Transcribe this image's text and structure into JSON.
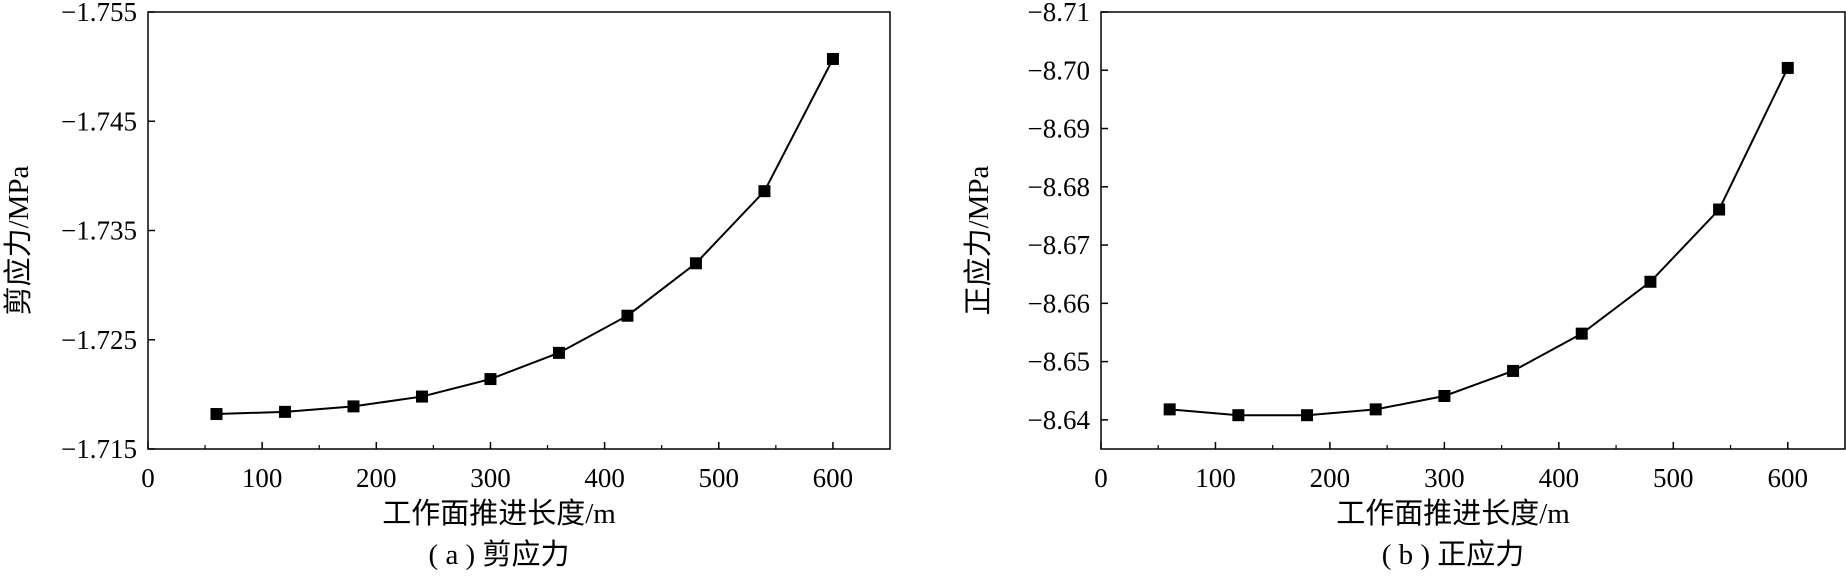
{
  "chart_data": [
    {
      "type": "line",
      "marker": "square",
      "caption": "( a ) 剪应力",
      "xlabel": "工作面推进长度/m",
      "ylabel": "剪应力/MPa",
      "xlim": [
        0,
        650
      ],
      "ylim": [
        -1.715,
        -1.755
      ],
      "y_axis_inverted": true,
      "xticks": [
        0,
        100,
        200,
        300,
        400,
        500,
        600
      ],
      "yticks": [
        "-1.755",
        "-1.745",
        "-1.735",
        "-1.725",
        "-1.715"
      ],
      "yticks_values": [
        -1.755,
        -1.745,
        -1.735,
        -1.725,
        -1.715
      ],
      "grid": false,
      "legend": "none",
      "series": [
        {
          "x": [
            60,
            120,
            180,
            240,
            300,
            360,
            420,
            480,
            540,
            600
          ],
          "y": [
            -1.7182,
            -1.7184,
            -1.7189,
            -1.7198,
            -1.7214,
            -1.7238,
            -1.7272,
            -1.732,
            -1.7386,
            -1.7507
          ]
        }
      ]
    },
    {
      "type": "line",
      "marker": "square",
      "caption": "( b ) 正应力",
      "xlabel": "工作面推进长度/m",
      "ylabel": "正应力/MPa",
      "xlim": [
        0,
        650
      ],
      "ylim": [
        -8.635,
        -8.71
      ],
      "y_axis_inverted": true,
      "xticks": [
        0,
        100,
        200,
        300,
        400,
        500,
        600
      ],
      "yticks": [
        "-8.71",
        "-8.70",
        "-8.69",
        "-8.68",
        "-8.67",
        "-8.66",
        "-8.65",
        "-8.64"
      ],
      "yticks_values": [
        -8.71,
        -8.7,
        -8.69,
        -8.68,
        -8.67,
        -8.66,
        -8.65,
        -8.64
      ],
      "grid": false,
      "legend": "none",
      "series": [
        {
          "x": [
            60,
            120,
            180,
            240,
            300,
            360,
            420,
            480,
            540,
            600
          ],
          "y": [
            -8.6418,
            -8.6408,
            -8.6408,
            -8.6418,
            -8.6441,
            -8.6484,
            -8.6548,
            -8.6637,
            -8.6761,
            -8.7004
          ]
        }
      ]
    }
  ]
}
